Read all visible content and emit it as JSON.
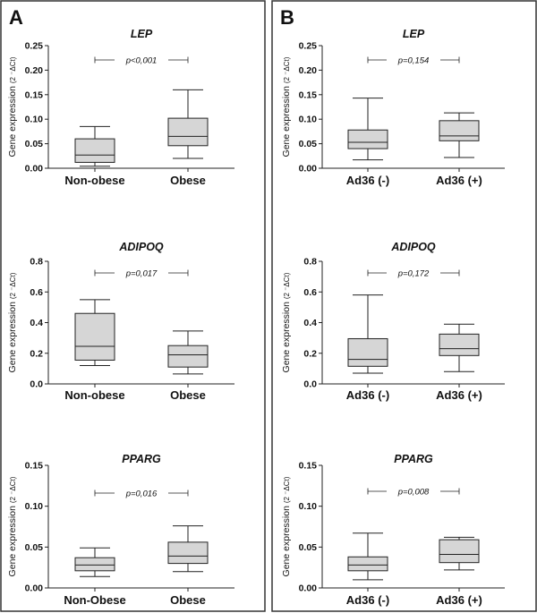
{
  "panels": [
    {
      "letter": "A"
    },
    {
      "letter": "B"
    }
  ],
  "chart_data": [
    {
      "type": "box",
      "panel": "A",
      "title": "LEP",
      "ylabel": "Gene expression",
      "ylabel_sup": "(2 ⁻ΔCt)",
      "ylim": [
        0,
        0.25
      ],
      "yticks": [
        "0.00",
        "0.05",
        "0.10",
        "0.15",
        "0.20",
        "0.25"
      ],
      "p_value": "p<0,001",
      "categories": [
        "Non-obese",
        "Obese"
      ],
      "boxes": [
        {
          "min": 0.004,
          "q1": 0.012,
          "median": 0.027,
          "q3": 0.06,
          "max": 0.085
        },
        {
          "min": 0.02,
          "q1": 0.046,
          "median": 0.065,
          "q3": 0.102,
          "max": 0.16
        }
      ]
    },
    {
      "type": "box",
      "panel": "B",
      "title": "LEP",
      "ylabel": "Gene expression",
      "ylabel_sup": "(2 ⁻ΔCt)",
      "ylim": [
        0,
        0.25
      ],
      "yticks": [
        "0.00",
        "0.05",
        "0.10",
        "0.15",
        "0.20",
        "0.25"
      ],
      "p_value": "p=0,154",
      "categories": [
        "Ad36 (-)",
        "Ad36 (+)"
      ],
      "boxes": [
        {
          "min": 0.017,
          "q1": 0.04,
          "median": 0.053,
          "q3": 0.078,
          "max": 0.143
        },
        {
          "min": 0.022,
          "q1": 0.056,
          "median": 0.066,
          "q3": 0.097,
          "max": 0.113
        }
      ]
    },
    {
      "type": "box",
      "panel": "A",
      "title": "ADIPOQ",
      "ylabel": "Gene expression",
      "ylabel_sup": "(2 ⁻ΔCt)",
      "ylim": [
        0,
        0.8
      ],
      "yticks": [
        "0.0",
        "0.2",
        "0.4",
        "0.6",
        "0.8"
      ],
      "p_value": "p=0,017",
      "categories": [
        "Non-obese",
        "Obese"
      ],
      "boxes": [
        {
          "min": 0.12,
          "q1": 0.155,
          "median": 0.245,
          "q3": 0.46,
          "max": 0.55
        },
        {
          "min": 0.065,
          "q1": 0.11,
          "median": 0.19,
          "q3": 0.25,
          "max": 0.345
        }
      ]
    },
    {
      "type": "box",
      "panel": "B",
      "title": "ADIPOQ",
      "ylabel": "Gene expression",
      "ylabel_sup": "(2 ⁻ΔCt)",
      "ylim": [
        0,
        0.8
      ],
      "yticks": [
        "0.0",
        "0.2",
        "0.4",
        "0.6",
        "0.8"
      ],
      "p_value": "p=0,172",
      "categories": [
        "Ad36 (-)",
        "Ad36 (+)"
      ],
      "boxes": [
        {
          "min": 0.07,
          "q1": 0.115,
          "median": 0.16,
          "q3": 0.295,
          "max": 0.58
        },
        {
          "min": 0.08,
          "q1": 0.185,
          "median": 0.23,
          "q3": 0.325,
          "max": 0.39
        }
      ]
    },
    {
      "type": "box",
      "panel": "A",
      "title": "PPARG",
      "ylabel": "Gene expression",
      "ylabel_sup": "(2 ⁻ΔCt)",
      "ylim": [
        0,
        0.15
      ],
      "yticks": [
        "0.00",
        "0.05",
        "0.10",
        "0.15"
      ],
      "p_value": "p=0,016",
      "categories": [
        "Non-Obese",
        "Obese"
      ],
      "boxes": [
        {
          "min": 0.014,
          "q1": 0.021,
          "median": 0.028,
          "q3": 0.037,
          "max": 0.049
        },
        {
          "min": 0.02,
          "q1": 0.03,
          "median": 0.039,
          "q3": 0.056,
          "max": 0.076
        }
      ]
    },
    {
      "type": "box",
      "panel": "B",
      "title": "PPARG",
      "ylabel": "Gene expression",
      "ylabel_sup": "(2 ⁻ΔCt)",
      "ylim": [
        0,
        0.15
      ],
      "yticks": [
        "0.00",
        "0.05",
        "0.10",
        "0.15"
      ],
      "p_value": "p=0,008",
      "categories": [
        "Ad36 (-)",
        "Ad36 (+)"
      ],
      "boxes": [
        {
          "min": 0.01,
          "q1": 0.021,
          "median": 0.028,
          "q3": 0.038,
          "max": 0.067
        },
        {
          "min": 0.022,
          "q1": 0.031,
          "median": 0.041,
          "q3": 0.059,
          "max": 0.062
        }
      ]
    }
  ],
  "colors": {
    "box_fill": "#d6d6d6",
    "line": "#222222",
    "frame": "#333333",
    "text": "#111111"
  }
}
